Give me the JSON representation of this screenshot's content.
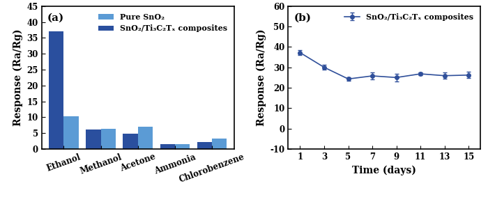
{
  "chart_data": [
    {
      "type": "bar",
      "title": "(a)",
      "categories": [
        "Ethanol",
        "Methanol",
        "Acetone",
        "Ammonia",
        "Chlorobenzene"
      ],
      "series": [
        {
          "name": "SnO₂/Ti₃C₂Tₓ composites",
          "color": "#2a4f9e",
          "values": [
            37.0,
            6.1,
            4.8,
            1.6,
            2.2
          ]
        },
        {
          "name": "Pure SnO₂",
          "color": "#5b9bd5",
          "values": [
            10.3,
            6.3,
            7.0,
            1.5,
            3.2
          ]
        }
      ],
      "y_label": "Response (Ra/Rg)",
      "ylim": [
        0,
        45
      ],
      "yticks": [
        0,
        5,
        10,
        15,
        20,
        25,
        30,
        35,
        40,
        45
      ],
      "legend": "upper right"
    },
    {
      "type": "line",
      "title": "(b)",
      "x": [
        1,
        3,
        5,
        7,
        9,
        11,
        13,
        15
      ],
      "series": [
        {
          "name": "SnO₂/Ti₃C₂Tₓ composites",
          "color": "#2f4f9a",
          "marker": "o",
          "line_style": "solid",
          "values": [
            37.2,
            30.0,
            24.3,
            25.8,
            25.0,
            26.8,
            25.9,
            26.2
          ],
          "errors": [
            1.3,
            1.3,
            0.8,
            1.8,
            1.8,
            0.8,
            1.6,
            1.5
          ]
        }
      ],
      "x_label": "Time (days)",
      "y_label": "Response (Ra/Rg)",
      "xlim": [
        0,
        16
      ],
      "xticks": [
        1,
        3,
        5,
        7,
        9,
        11,
        13,
        15
      ],
      "ylim": [
        -10,
        60
      ],
      "yticks": [
        -10,
        0,
        10,
        20,
        30,
        40,
        50,
        60
      ],
      "legend": "upper right"
    }
  ]
}
